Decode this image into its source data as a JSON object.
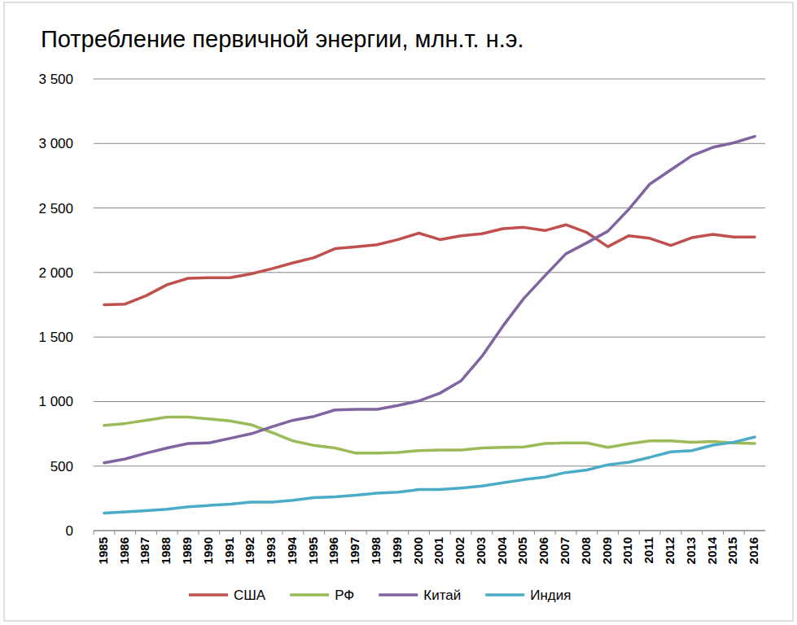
{
  "chart_data": {
    "type": "line",
    "title": "Потребление первичной энергии, млн.т. н.э.",
    "categories": [
      "1985",
      "1986",
      "1987",
      "1988",
      "1989",
      "1990",
      "1991",
      "1992",
      "1993",
      "1994",
      "1995",
      "1996",
      "1997",
      "1998",
      "1999",
      "2000",
      "2001",
      "2002",
      "2003",
      "2004",
      "2005",
      "2006",
      "2007",
      "2008",
      "2009",
      "2010",
      "2011",
      "2012",
      "2013",
      "2014",
      "2015",
      "2016"
    ],
    "series": [
      {
        "name": "США",
        "color": "#c0504d",
        "values": [
          1750,
          1755,
          1820,
          1905,
          1955,
          1960,
          1960,
          1990,
          2030,
          2075,
          2115,
          2185,
          2200,
          2215,
          2255,
          2305,
          2255,
          2285,
          2300,
          2340,
          2350,
          2325,
          2370,
          2310,
          2200,
          2285,
          2265,
          2210,
          2270,
          2295,
          2275,
          2275
        ]
      },
      {
        "name": "РФ",
        "color": "#9bbb59",
        "values": [
          815,
          830,
          855,
          880,
          880,
          865,
          850,
          820,
          760,
          695,
          660,
          640,
          600,
          600,
          605,
          620,
          625,
          625,
          640,
          645,
          648,
          675,
          680,
          680,
          645,
          673,
          695,
          695,
          685,
          690,
          680,
          675
        ]
      },
      {
        "name": "Китай",
        "color": "#8064a2",
        "values": [
          525,
          555,
          600,
          640,
          675,
          680,
          715,
          750,
          805,
          855,
          885,
          935,
          940,
          940,
          970,
          1005,
          1065,
          1160,
          1350,
          1585,
          1800,
          1975,
          2145,
          2230,
          2320,
          2490,
          2685,
          2795,
          2905,
          2970,
          3005,
          3055
        ]
      },
      {
        "name": "Индия",
        "color": "#4bacc6",
        "values": [
          135,
          145,
          155,
          165,
          185,
          195,
          205,
          220,
          220,
          235,
          255,
          262,
          275,
          290,
          298,
          318,
          318,
          330,
          345,
          370,
          395,
          415,
          450,
          470,
          510,
          530,
          568,
          610,
          620,
          662,
          685,
          725
        ]
      }
    ],
    "ylim": [
      0,
      3500
    ],
    "yticks": [
      0,
      500,
      {
        "value": 1000,
        "label": "1 000"
      },
      {
        "value": 1500,
        "label": "1 500"
      },
      {
        "value": 2000,
        "label": "2 000"
      },
      {
        "value": 2500,
        "label": "2 500"
      },
      {
        "value": 3000,
        "label": "3 000"
      },
      {
        "value": 3500,
        "label": "3 500"
      }
    ],
    "grid": true,
    "legend": "bottom"
  }
}
